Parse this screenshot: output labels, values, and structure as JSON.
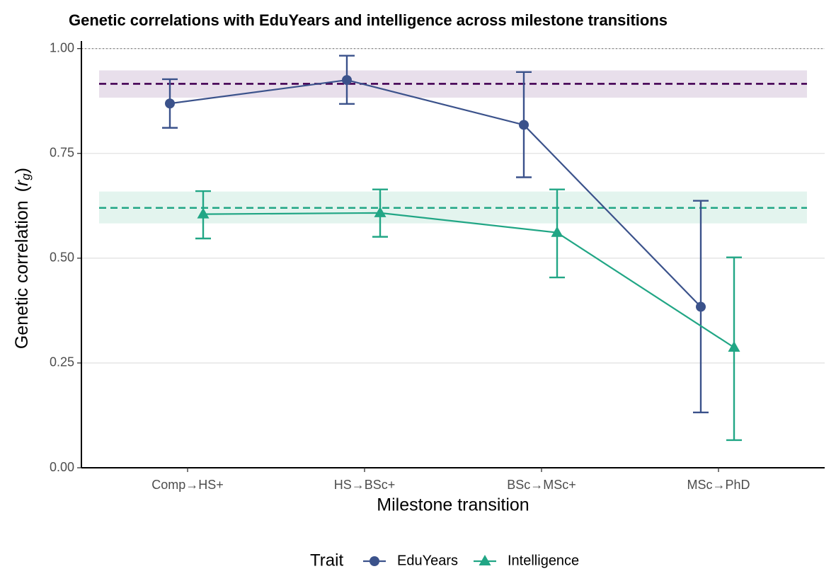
{
  "chart_data": {
    "type": "line_errorbar",
    "title": "Genetic correlations with EduYears and intelligence across milestone transitions",
    "xlabel": "Milestone transition",
    "ylabel": {
      "text": "Genetic correlation",
      "open": "(",
      "symbol": "r",
      "subscript": "g",
      "close": ")"
    },
    "categories": [
      "Comp→HS+",
      "HS→BSc+",
      "BSc→MSc+",
      "MSc→PhD"
    ],
    "ylim": [
      0,
      1.018
    ],
    "yticks": [
      {
        "value": 0,
        "label": "0.00"
      },
      {
        "value": 0.25,
        "label": "0.25"
      },
      {
        "value": 0.5,
        "label": "0.50"
      },
      {
        "value": 0.75,
        "label": "0.75"
      },
      {
        "value": 1,
        "label": "1.00"
      }
    ],
    "grid": true,
    "hline": {
      "value": 1,
      "color": "#888888"
    },
    "legend_title": "Trait",
    "legend_position": "bottom",
    "series": [
      {
        "name": "EduYears",
        "color": "#3b528b",
        "marker": "circle",
        "values": [
          0.869,
          0.925,
          0.818,
          0.384
        ],
        "lower": [
          0.811,
          0.868,
          0.693,
          0.132
        ],
        "upper": [
          0.927,
          0.983,
          0.944,
          0.637
        ],
        "ref_line": 0.916,
        "ref_band": [
          0.883,
          0.948
        ],
        "ref_color": "#440154",
        "band_color": "#e8dfeb"
      },
      {
        "name": "Intelligence",
        "color": "#21a685",
        "marker": "triangle",
        "values": [
          0.605,
          0.608,
          0.561,
          0.287
        ],
        "lower": [
          0.547,
          0.551,
          0.454,
          0.066
        ],
        "upper": [
          0.66,
          0.664,
          0.664,
          0.502
        ],
        "ref_line": 0.62,
        "ref_band": [
          0.583,
          0.659
        ],
        "ref_color": "#21a685",
        "band_color": "#e3f4ee"
      }
    ]
  }
}
